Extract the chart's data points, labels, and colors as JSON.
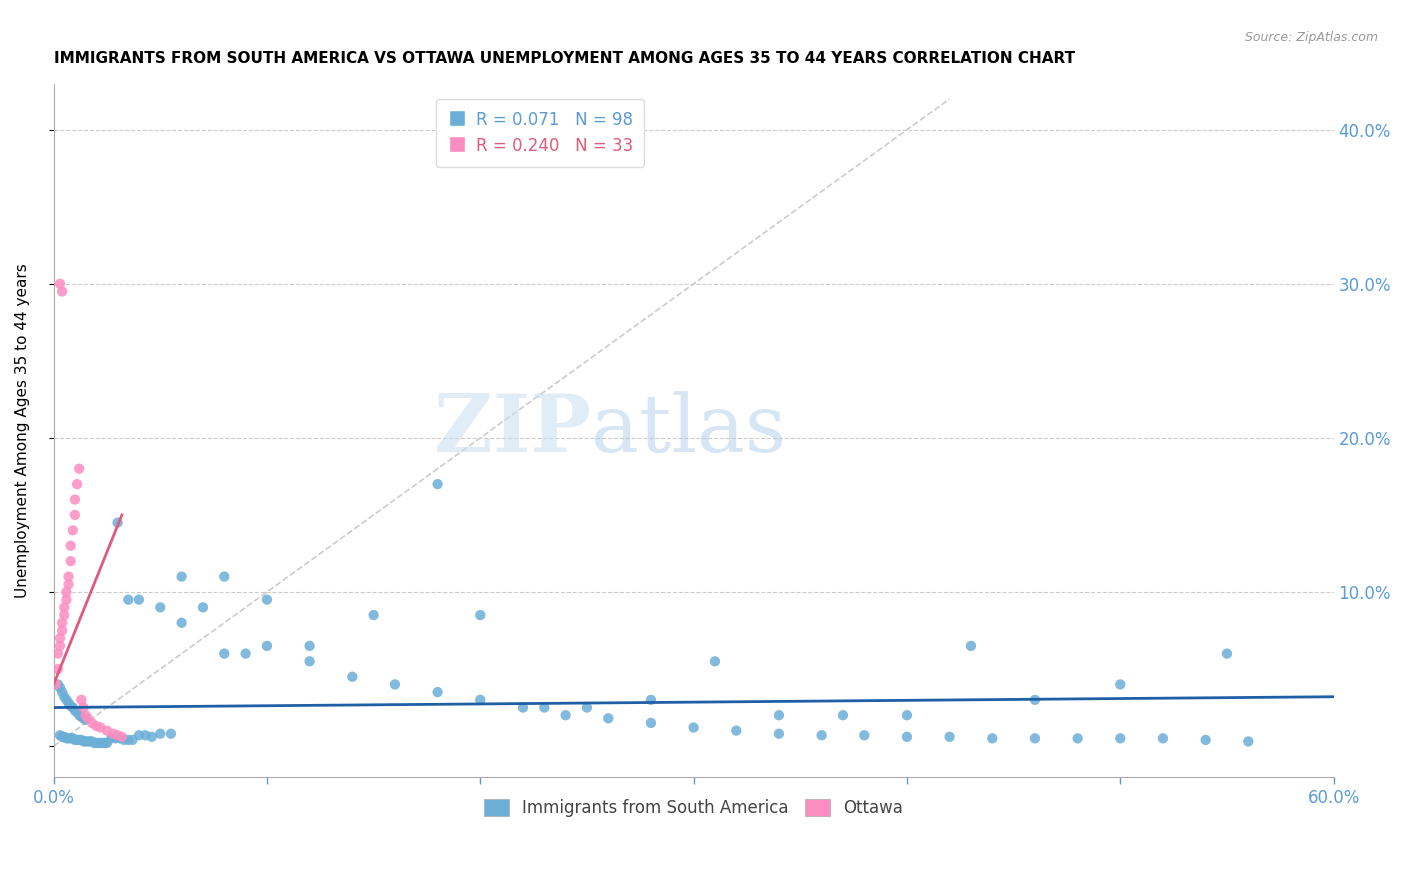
{
  "title": "IMMIGRANTS FROM SOUTH AMERICA VS OTTAWA UNEMPLOYMENT AMONG AGES 35 TO 44 YEARS CORRELATION CHART",
  "source": "Source: ZipAtlas.com",
  "ylabel": "Unemployment Among Ages 35 to 44 years",
  "xmin": 0.0,
  "xmax": 0.6,
  "ymin": -0.02,
  "ymax": 0.43,
  "legend1_label": "Immigrants from South America",
  "legend1_color": "#6baed6",
  "legend2_label": "Ottawa",
  "legend2_color": "#fc8dc0",
  "r1": 0.071,
  "n1": 98,
  "r2": 0.24,
  "n2": 33,
  "trend1_color": "#1f5fa6",
  "trend2_color": "#e05a7a",
  "diagonal_color": "#cccccc",
  "watermark_zip": "ZIP",
  "watermark_atlas": "atlas",
  "blue_x": [
    0.002,
    0.003,
    0.004,
    0.005,
    0.006,
    0.007,
    0.008,
    0.009,
    0.01,
    0.011,
    0.012,
    0.013,
    0.014,
    0.015,
    0.003,
    0.004,
    0.005,
    0.006,
    0.007,
    0.008,
    0.009,
    0.01,
    0.011,
    0.012,
    0.013,
    0.014,
    0.015,
    0.016,
    0.017,
    0.018,
    0.019,
    0.02,
    0.021,
    0.022,
    0.023,
    0.024,
    0.025,
    0.027,
    0.029,
    0.031,
    0.033,
    0.035,
    0.037,
    0.04,
    0.043,
    0.046,
    0.05,
    0.055,
    0.06,
    0.07,
    0.08,
    0.09,
    0.1,
    0.12,
    0.14,
    0.16,
    0.18,
    0.2,
    0.22,
    0.24,
    0.26,
    0.28,
    0.3,
    0.32,
    0.34,
    0.36,
    0.38,
    0.4,
    0.42,
    0.44,
    0.46,
    0.48,
    0.5,
    0.52,
    0.54,
    0.56,
    0.03,
    0.035,
    0.04,
    0.05,
    0.06,
    0.08,
    0.1,
    0.12,
    0.15,
    0.18,
    0.2,
    0.23,
    0.25,
    0.28,
    0.31,
    0.34,
    0.37,
    0.4,
    0.43,
    0.46,
    0.5,
    0.55
  ],
  "blue_y": [
    0.04,
    0.038,
    0.035,
    0.032,
    0.03,
    0.028,
    0.026,
    0.025,
    0.023,
    0.022,
    0.02,
    0.019,
    0.018,
    0.017,
    0.007,
    0.006,
    0.006,
    0.005,
    0.005,
    0.005,
    0.005,
    0.004,
    0.004,
    0.004,
    0.004,
    0.003,
    0.003,
    0.003,
    0.003,
    0.003,
    0.002,
    0.002,
    0.002,
    0.002,
    0.002,
    0.002,
    0.002,
    0.005,
    0.005,
    0.005,
    0.004,
    0.004,
    0.004,
    0.007,
    0.007,
    0.006,
    0.008,
    0.008,
    0.08,
    0.09,
    0.06,
    0.06,
    0.065,
    0.055,
    0.045,
    0.04,
    0.035,
    0.03,
    0.025,
    0.02,
    0.018,
    0.015,
    0.012,
    0.01,
    0.008,
    0.007,
    0.007,
    0.006,
    0.006,
    0.005,
    0.005,
    0.005,
    0.005,
    0.005,
    0.004,
    0.003,
    0.145,
    0.095,
    0.095,
    0.09,
    0.11,
    0.11,
    0.095,
    0.065,
    0.085,
    0.17,
    0.085,
    0.025,
    0.025,
    0.03,
    0.055,
    0.02,
    0.02,
    0.02,
    0.065,
    0.03,
    0.04,
    0.06
  ],
  "pink_x": [
    0.001,
    0.002,
    0.002,
    0.003,
    0.003,
    0.004,
    0.004,
    0.005,
    0.005,
    0.006,
    0.006,
    0.007,
    0.007,
    0.008,
    0.008,
    0.009,
    0.01,
    0.01,
    0.011,
    0.012,
    0.013,
    0.014,
    0.015,
    0.016,
    0.018,
    0.02,
    0.022,
    0.025,
    0.028,
    0.03,
    0.032,
    0.003,
    0.004
  ],
  "pink_y": [
    0.04,
    0.05,
    0.06,
    0.065,
    0.07,
    0.075,
    0.08,
    0.085,
    0.09,
    0.095,
    0.1,
    0.105,
    0.11,
    0.12,
    0.13,
    0.14,
    0.15,
    0.16,
    0.17,
    0.18,
    0.03,
    0.025,
    0.02,
    0.018,
    0.015,
    0.013,
    0.012,
    0.01,
    0.008,
    0.007,
    0.006,
    0.3,
    0.295
  ],
  "trend1_x": [
    0.0,
    0.6
  ],
  "trend1_y": [
    0.025,
    0.032
  ],
  "trend2_x": [
    0.0,
    0.032
  ],
  "trend2_y": [
    0.04,
    0.15
  ]
}
